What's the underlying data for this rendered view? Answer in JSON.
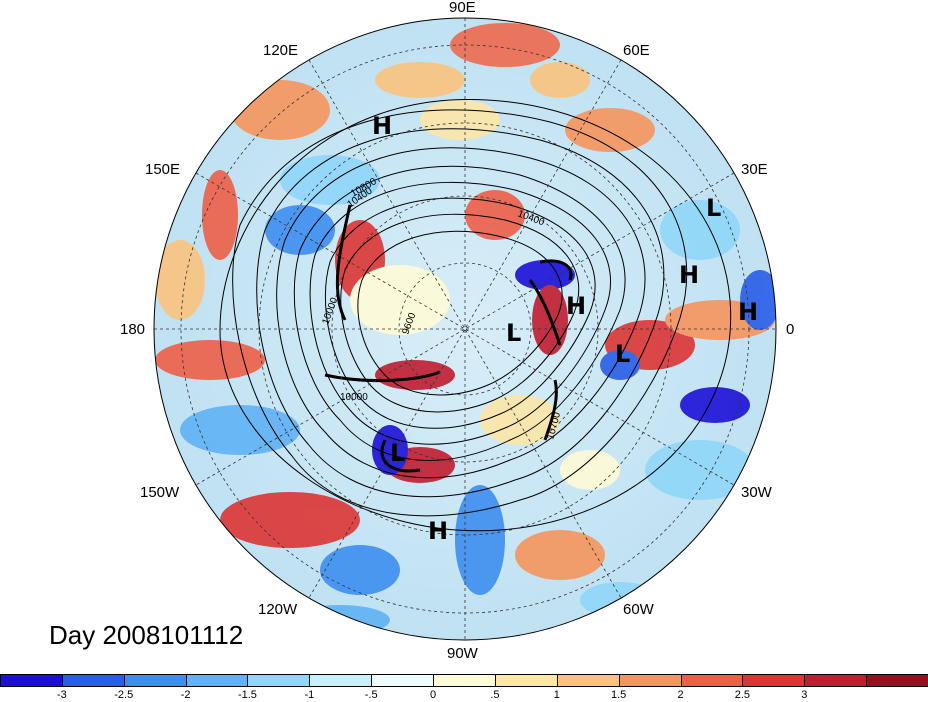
{
  "map": {
    "projection": "polar stereographic, northern hemisphere",
    "field": "standardized anomaly (shaded) with geopotential height contours",
    "longitude_labels": [
      "90E",
      "60E",
      "30E",
      "0",
      "30W",
      "60W",
      "90W",
      "120W",
      "150W",
      "180",
      "150E",
      "120E"
    ],
    "contour_labels": [
      "10400",
      "10400",
      "10000",
      "10000",
      "9600",
      "10800",
      "10700"
    ],
    "systems": [
      {
        "type": "H",
        "region": "East Siberia"
      },
      {
        "type": "L",
        "region": "Central Asia"
      },
      {
        "type": "H",
        "region": "Siberia"
      },
      {
        "type": "H",
        "region": "Europe"
      },
      {
        "type": "H",
        "region": "Scandinavia"
      },
      {
        "type": "L",
        "region": "North Atlantic"
      },
      {
        "type": "L",
        "region": "Arctic"
      },
      {
        "type": "L",
        "region": "Northeast Pacific"
      },
      {
        "type": "H",
        "region": "Central America"
      }
    ]
  },
  "date_label": "Day 2008101112",
  "colorbar": {
    "colors": [
      "#1c10d6",
      "#2a5ee8",
      "#3e8ef0",
      "#60b2f5",
      "#8fd6f9",
      "#c8f0fc",
      "#eefcfe",
      "#fffbd6",
      "#fde6a8",
      "#fbc37e",
      "#f6955c",
      "#ee5f47",
      "#dd3535",
      "#c11d30",
      "#9a0e21"
    ],
    "tick_labels": [
      "-3",
      "-2.5",
      "-2",
      "-1.5",
      "-1",
      "-.5",
      "0",
      ".5",
      "1",
      "1.5",
      "2",
      "2.5",
      "3"
    ]
  }
}
